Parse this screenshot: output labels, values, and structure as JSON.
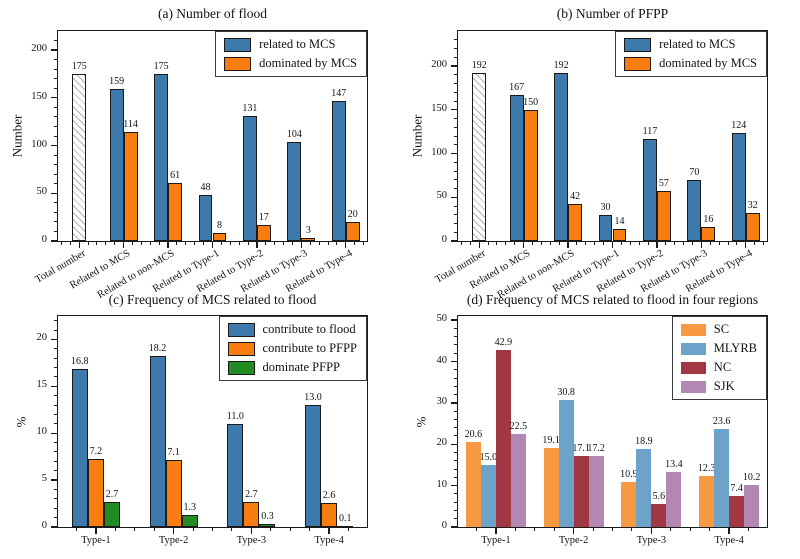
{
  "figure_background": "#ffffff",
  "chart_data": [
    {
      "key": "a",
      "type": "bar",
      "title": "(a) Number of flood",
      "ylabel": "Number",
      "ylim": [
        0,
        220
      ],
      "yticks": [
        0,
        50,
        100,
        150,
        200
      ],
      "y_minor_step": 10,
      "x_minor_divs": 5,
      "rotate_xticks": 30,
      "grid": false,
      "bar_edge": "#1a1a1a",
      "group_frac": 0.63,
      "legend_position": "top-right",
      "legend": [
        {
          "label": "related to MCS",
          "color": "#3d7aab"
        },
        {
          "label": "dominated by MCS",
          "color": "#f97d10"
        }
      ],
      "groups": [
        {
          "category": "Total number",
          "bars": [
            {
              "value": 175,
              "label": "175",
              "color": "#ffffff",
              "hatch": true
            }
          ]
        },
        {
          "category": "Related to MCS",
          "bars": [
            {
              "value": 159,
              "label": "159",
              "color": "#3d7aab"
            },
            {
              "value": 114,
              "label": "114",
              "color": "#f97d10"
            }
          ]
        },
        {
          "category": "Related to non-MCS",
          "bars": [
            {
              "value": 175,
              "label": "175",
              "color": "#3d7aab"
            },
            {
              "value": 61,
              "label": "61",
              "color": "#f97d10"
            }
          ]
        },
        {
          "category": "Related to Type-1",
          "bars": [
            {
              "value": 48,
              "label": "48",
              "color": "#3d7aab"
            },
            {
              "value": 8,
              "label": "8",
              "color": "#f97d10"
            }
          ]
        },
        {
          "category": "Related to Type-2",
          "bars": [
            {
              "value": 131,
              "label": "131",
              "color": "#3d7aab"
            },
            {
              "value": 17,
              "label": "17",
              "color": "#f97d10"
            }
          ]
        },
        {
          "category": "Related to Type-3",
          "bars": [
            {
              "value": 104,
              "label": "104",
              "color": "#3d7aab"
            },
            {
              "value": 3,
              "label": "3",
              "color": "#f97d10"
            }
          ]
        },
        {
          "category": "Related to Type-4",
          "bars": [
            {
              "value": 147,
              "label": "147",
              "color": "#3d7aab"
            },
            {
              "value": 20,
              "label": "20",
              "color": "#f97d10"
            }
          ]
        }
      ]
    },
    {
      "key": "b",
      "type": "bar",
      "title": "(b) Number of PFPP",
      "ylabel": "Number",
      "ylim": [
        0,
        240
      ],
      "yticks": [
        0,
        50,
        100,
        150,
        200
      ],
      "y_minor_step": 10,
      "x_minor_divs": 5,
      "rotate_xticks": 30,
      "grid": false,
      "bar_edge": "#1a1a1a",
      "group_frac": 0.63,
      "legend_position": "top-right",
      "legend": [
        {
          "label": "related to MCS",
          "color": "#3d7aab"
        },
        {
          "label": "dominated by MCS",
          "color": "#f97d10"
        }
      ],
      "groups": [
        {
          "category": "Total number",
          "bars": [
            {
              "value": 192,
              "label": "192",
              "color": "#ffffff",
              "hatch": true
            }
          ]
        },
        {
          "category": "Related to MCS",
          "bars": [
            {
              "value": 167,
              "label": "167",
              "color": "#3d7aab"
            },
            {
              "value": 150,
              "label": "150",
              "color": "#f97d10"
            }
          ]
        },
        {
          "category": "Related to non-MCS",
          "bars": [
            {
              "value": 192,
              "label": "192",
              "color": "#3d7aab"
            },
            {
              "value": 42,
              "label": "42",
              "color": "#f97d10"
            }
          ]
        },
        {
          "category": "Related to Type-1",
          "bars": [
            {
              "value": 30,
              "label": "30",
              "color": "#3d7aab"
            },
            {
              "value": 14,
              "label": "14",
              "color": "#f97d10"
            }
          ]
        },
        {
          "category": "Related to Type-2",
          "bars": [
            {
              "value": 117,
              "label": "117",
              "color": "#3d7aab"
            },
            {
              "value": 57,
              "label": "57",
              "color": "#f97d10"
            }
          ]
        },
        {
          "category": "Related to Type-3",
          "bars": [
            {
              "value": 70,
              "label": "70",
              "color": "#3d7aab"
            },
            {
              "value": 16,
              "label": "16",
              "color": "#f97d10"
            }
          ]
        },
        {
          "category": "Related to Type-4",
          "bars": [
            {
              "value": 124,
              "label": "124",
              "color": "#3d7aab"
            },
            {
              "value": 32,
              "label": "32",
              "color": "#f97d10"
            }
          ]
        }
      ]
    },
    {
      "key": "c",
      "type": "bar",
      "title": "(c) Frequency of MCS related to flood",
      "ylabel": "%",
      "ylim": [
        0,
        22.5
      ],
      "yticks": [
        0,
        5,
        10,
        15,
        20
      ],
      "y_minor_step": 1,
      "x_minor_divs": 4,
      "rotate_xticks": 0,
      "grid": false,
      "bar_edge": "#1a1a1a",
      "group_frac": 0.62,
      "legend_position": "top-right",
      "legend": [
        {
          "label": "contribute to flood",
          "color": "#3d7aab"
        },
        {
          "label": "contribute to PFPP",
          "color": "#f97d10"
        },
        {
          "label": "dominate PFPP",
          "color": "#228b22"
        }
      ],
      "groups": [
        {
          "category": "Type-1",
          "bars": [
            {
              "value": 16.8,
              "label": "16.8",
              "color": "#3d7aab"
            },
            {
              "value": 7.2,
              "label": "7.2",
              "color": "#f97d10"
            },
            {
              "value": 2.7,
              "label": "2.7",
              "color": "#228b22"
            }
          ]
        },
        {
          "category": "Type-2",
          "bars": [
            {
              "value": 18.2,
              "label": "18.2",
              "color": "#3d7aab"
            },
            {
              "value": 7.1,
              "label": "7.1",
              "color": "#f97d10"
            },
            {
              "value": 1.3,
              "label": "1.3",
              "color": "#228b22"
            }
          ]
        },
        {
          "category": "Type-3",
          "bars": [
            {
              "value": 11.0,
              "label": "11.0",
              "color": "#3d7aab"
            },
            {
              "value": 2.7,
              "label": "2.7",
              "color": "#f97d10"
            },
            {
              "value": 0.3,
              "label": "0.3",
              "color": "#228b22"
            }
          ]
        },
        {
          "category": "Type-4",
          "bars": [
            {
              "value": 13.0,
              "label": "13.0",
              "color": "#3d7aab"
            },
            {
              "value": 2.6,
              "label": "2.6",
              "color": "#f97d10"
            },
            {
              "value": 0.1,
              "label": "0.1",
              "color": "#228b22"
            }
          ]
        }
      ]
    },
    {
      "key": "d",
      "type": "bar",
      "title": "(d) Frequency of MCS related to flood in four regions",
      "ylabel": "%",
      "ylim": [
        0,
        51
      ],
      "yticks": [
        0,
        10,
        20,
        30,
        40,
        50
      ],
      "y_minor_step": 2,
      "x_minor_divs": 4,
      "rotate_xticks": 0,
      "grid": false,
      "bar_edge": null,
      "group_frac": 0.77,
      "legend_position": "top-right",
      "legend": [
        {
          "label": "SC",
          "color": "#f79843"
        },
        {
          "label": "MLYRB",
          "color": "#6da3ca"
        },
        {
          "label": "NC",
          "color": "#a23744"
        },
        {
          "label": "SJK",
          "color": "#b287b2"
        }
      ],
      "groups": [
        {
          "category": "Type-1",
          "bars": [
            {
              "value": 20.6,
              "label": "20.6",
              "color": "#f79843"
            },
            {
              "value": 15.0,
              "label": "15.0",
              "color": "#6da3ca"
            },
            {
              "value": 42.9,
              "label": "42.9",
              "color": "#a23744"
            },
            {
              "value": 22.5,
              "label": "22.5",
              "color": "#b287b2"
            }
          ]
        },
        {
          "category": "Type-2",
          "bars": [
            {
              "value": 19.1,
              "label": "19.1",
              "color": "#f79843"
            },
            {
              "value": 30.8,
              "label": "30.8",
              "color": "#6da3ca"
            },
            {
              "value": 17.1,
              "label": "17.1",
              "color": "#a23744"
            },
            {
              "value": 17.2,
              "label": "17.2",
              "color": "#b287b2"
            }
          ]
        },
        {
          "category": "Type-3",
          "bars": [
            {
              "value": 10.9,
              "label": "10.9",
              "color": "#f79843"
            },
            {
              "value": 18.9,
              "label": "18.9",
              "color": "#6da3ca"
            },
            {
              "value": 5.6,
              "label": "5.6",
              "color": "#a23744"
            },
            {
              "value": 13.4,
              "label": "13.4",
              "color": "#b287b2"
            }
          ]
        },
        {
          "category": "Type-4",
          "bars": [
            {
              "value": 12.3,
              "label": "12.3",
              "color": "#f79843"
            },
            {
              "value": 23.6,
              "label": "23.6",
              "color": "#6da3ca"
            },
            {
              "value": 7.4,
              "label": "7.4",
              "color": "#a23744"
            },
            {
              "value": 10.2,
              "label": "10.2",
              "color": "#b287b2"
            }
          ]
        }
      ]
    }
  ]
}
